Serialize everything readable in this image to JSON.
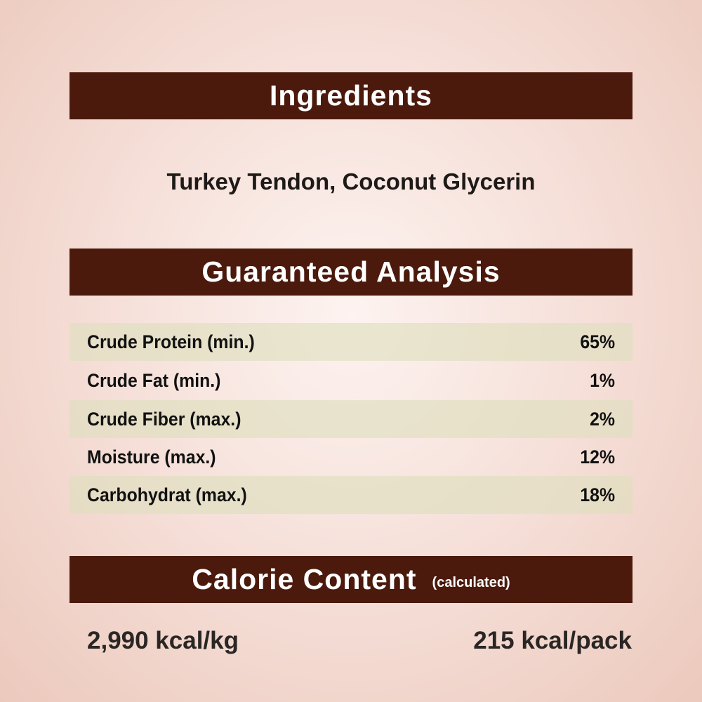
{
  "ingredients": {
    "title": "Ingredients",
    "text": "Turkey Tendon, Coconut Glycerin"
  },
  "analysis": {
    "title": "Guaranteed Analysis",
    "rows": [
      {
        "label": "Crude Protein (min.)",
        "value": "65%"
      },
      {
        "label": "Crude Fat (min.)",
        "value": "1%"
      },
      {
        "label": "Crude Fiber (max.)",
        "value": "2%"
      },
      {
        "label": "Moisture (max.)",
        "value": "12%"
      },
      {
        "label": "Carbohydrat (max.)",
        "value": "18%"
      }
    ]
  },
  "calories": {
    "title": "Calorie Content",
    "subtitle": "(calculated)",
    "per_kg": "2,990 kcal/kg",
    "per_pack": "215 kcal/pack"
  },
  "colors": {
    "banner": "#4b1a0c",
    "row_shade": "#dedebe"
  }
}
